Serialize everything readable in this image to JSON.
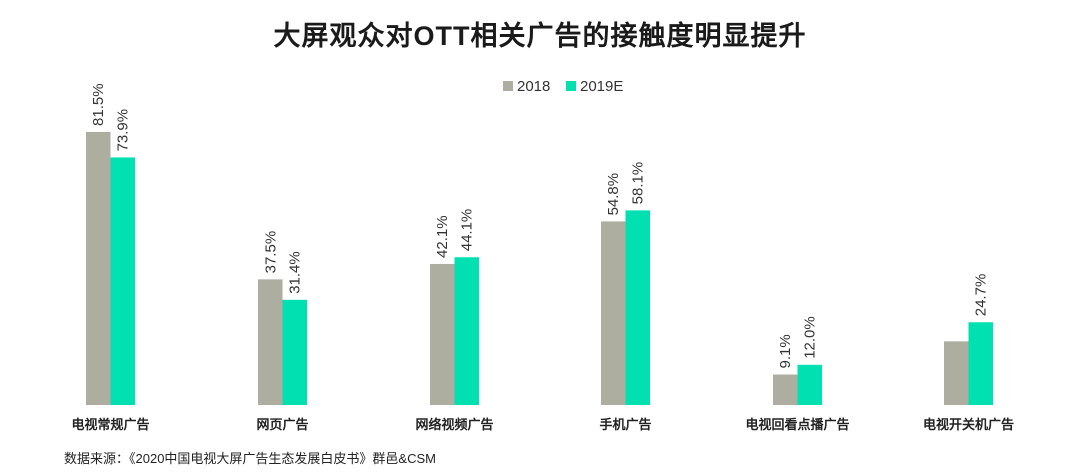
{
  "chart_data": {
    "type": "bar",
    "title": "大屏观众对OTT相关广告的接触度明显提升",
    "xlabel": "",
    "ylabel": "",
    "ylim": [
      0,
      100
    ],
    "grid": false,
    "legend_position": "top-center",
    "categories": [
      "电视常规广告",
      "网页广告",
      "网络视频广告",
      "手机广告",
      "电视回看点播广告",
      "电视开关机广告"
    ],
    "series": [
      {
        "name": "2018",
        "color": "#aeaea0",
        "values": [
          81.5,
          37.5,
          42.1,
          54.8,
          9.1,
          19.0
        ],
        "labels": [
          "81.5%",
          "37.5%",
          "42.1%",
          "54.8%",
          "9.1%",
          ""
        ]
      },
      {
        "name": "2019E",
        "color": "#00e0b0",
        "values": [
          73.9,
          31.4,
          44.1,
          58.1,
          12.0,
          24.7
        ],
        "labels": [
          "73.9%",
          "31.4%",
          "44.1%",
          "58.1%",
          "12.0%",
          "24.7%"
        ]
      }
    ]
  },
  "source": "数据来源：《2020中国电视大屏广告生态发展白皮书》群邑&CSM"
}
